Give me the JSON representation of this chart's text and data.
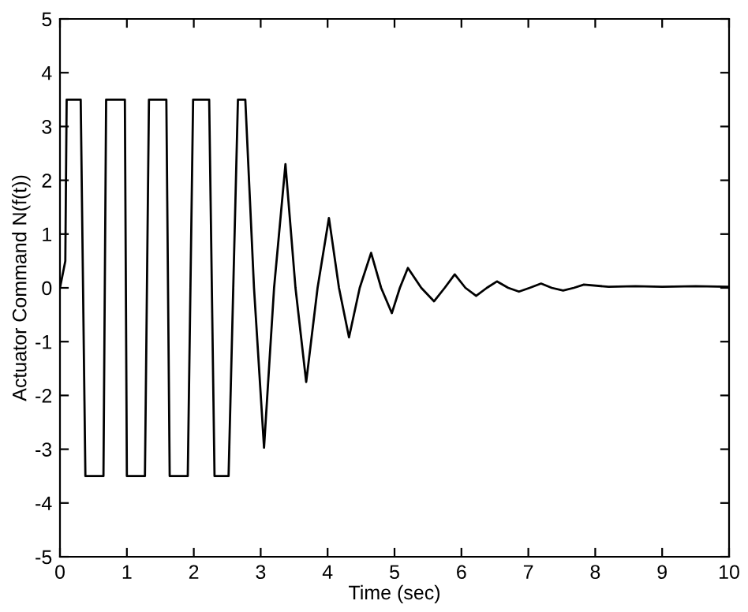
{
  "chart_data": {
    "type": "line",
    "xlabel": "Time (sec)",
    "ylabel": "Actuator Command N(f(t))",
    "xlim": [
      0,
      10
    ],
    "ylim": [
      -5,
      5
    ],
    "xticks": [
      0,
      1,
      2,
      3,
      4,
      5,
      6,
      7,
      8,
      9,
      10
    ],
    "yticks": [
      -5,
      -4,
      -3,
      -2,
      -1,
      0,
      1,
      2,
      3,
      4,
      5
    ],
    "grid": false,
    "legend": false,
    "marker": "none",
    "line_style": "solid",
    "series": [
      {
        "color": "#000000",
        "x": [
          0,
          0.08,
          0.1,
          0.31,
          0.38,
          0.65,
          0.69,
          0.97,
          1.0,
          1.27,
          1.33,
          1.59,
          1.64,
          1.91,
          1.99,
          2.23,
          2.31,
          2.52,
          2.66,
          2.77,
          2.9,
          3.05,
          3.2,
          3.37,
          3.52,
          3.68,
          3.85,
          4.02,
          4.17,
          4.32,
          4.48,
          4.65,
          4.8,
          4.96,
          5.08,
          5.2,
          5.4,
          5.59,
          5.75,
          5.9,
          6.06,
          6.22,
          6.38,
          6.53,
          6.7,
          6.86,
          7.02,
          7.19,
          7.35,
          7.52,
          7.68,
          7.83,
          8.2,
          8.6,
          9.0,
          9.5,
          10
        ],
        "values": [
          0,
          0.5,
          3.5,
          3.5,
          -3.5,
          -3.5,
          3.5,
          3.5,
          -3.5,
          -3.5,
          3.5,
          3.5,
          -3.5,
          -3.5,
          3.5,
          3.5,
          -3.5,
          -3.5,
          3.5,
          3.5,
          0,
          -2.97,
          0,
          2.3,
          0,
          -1.75,
          0,
          1.3,
          0,
          -0.92,
          0,
          0.65,
          0,
          -0.47,
          0,
          0.37,
          0,
          -0.25,
          0,
          0.25,
          0,
          -0.15,
          0,
          0.12,
          0,
          -0.07,
          0,
          0.08,
          0,
          -0.05,
          0,
          0.06,
          0.02,
          0.03,
          0.02,
          0.03,
          0.02
        ]
      }
    ]
  }
}
